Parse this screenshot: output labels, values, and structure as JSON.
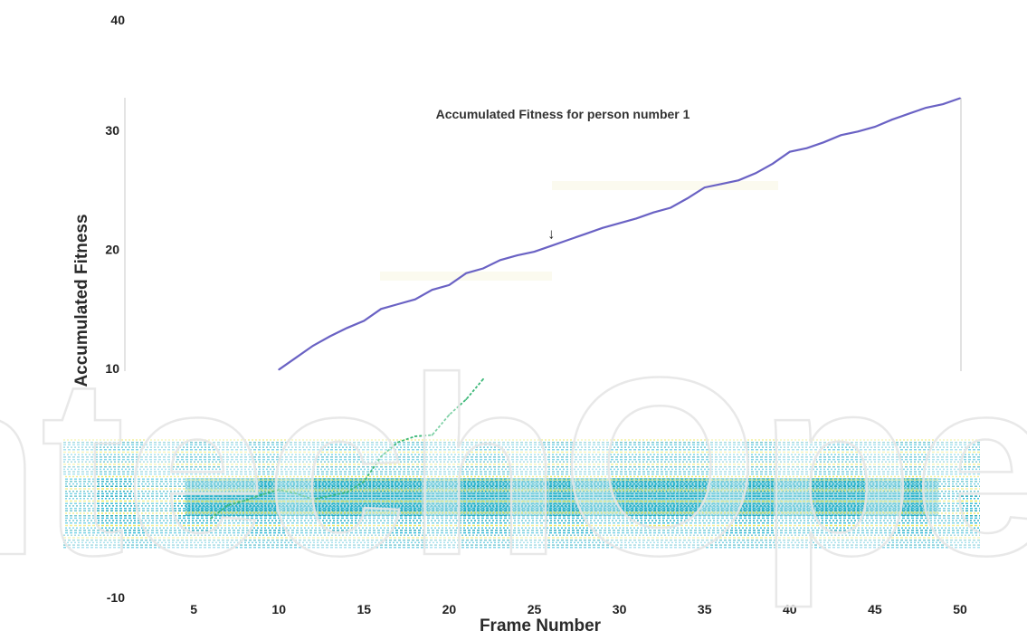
{
  "chart_data": {
    "type": "line",
    "title": "Accumulated Fitness for person number 1",
    "xlabel": "Frame Number",
    "ylabel": "Accumulated Fitness",
    "xlim": [
      0,
      52
    ],
    "ylim": [
      -10,
      40
    ],
    "x_ticks": [
      5,
      10,
      15,
      20,
      25,
      30,
      35,
      40,
      45,
      50
    ],
    "y_ticks": [
      -10,
      10,
      20,
      30,
      40
    ],
    "grid": false,
    "series": [
      {
        "color": "#6a62c4",
        "x": [
          10,
          11,
          12,
          13,
          14,
          15,
          16,
          17,
          18,
          19,
          20,
          21,
          22,
          23,
          24,
          25,
          26,
          27,
          28,
          29,
          30,
          31,
          32,
          33,
          34,
          35,
          36,
          37,
          38,
          39,
          40,
          41,
          42,
          43,
          44,
          45,
          46,
          47,
          48,
          49,
          50
        ],
        "y": [
          9.9,
          10.9,
          11.9,
          12.7,
          13.4,
          14.0,
          15.0,
          15.4,
          15.8,
          16.6,
          17.0,
          18.0,
          18.4,
          19.1,
          19.5,
          19.8,
          20.3,
          20.8,
          21.3,
          21.8,
          22.2,
          22.6,
          23.1,
          23.5,
          24.3,
          25.2,
          25.5,
          25.8,
          26.4,
          27.2,
          28.2,
          28.5,
          29.0,
          29.6,
          29.9,
          30.3,
          30.9,
          31.4,
          31.9,
          32.2,
          32.7
        ]
      },
      {
        "color": "#3cb878",
        "x": [
          6,
          7,
          8,
          9,
          10,
          11,
          12,
          13,
          14,
          15,
          16,
          17,
          18,
          19,
          20,
          21,
          22
        ],
        "y": [
          -2.6,
          -1.5,
          -1.1,
          -0.6,
          -0.2,
          -0.5,
          -1.0,
          -0.7,
          -0.4,
          0.5,
          2.6,
          3.8,
          4.3,
          4.4,
          6.1,
          7.4,
          9.1
        ]
      }
    ],
    "annotations": [
      {
        "text": "↓",
        "x": 26,
        "y": 21.2
      }
    ]
  },
  "watermark": "IntechOpen",
  "colors": {
    "overlay_cyan": "#17b4d8",
    "overlay_teal": "#0e9fb0",
    "overlay_yellow": "#e8e64a",
    "watermark_fill": "#ffffff",
    "watermark_stroke": "#e6e6e6"
  }
}
